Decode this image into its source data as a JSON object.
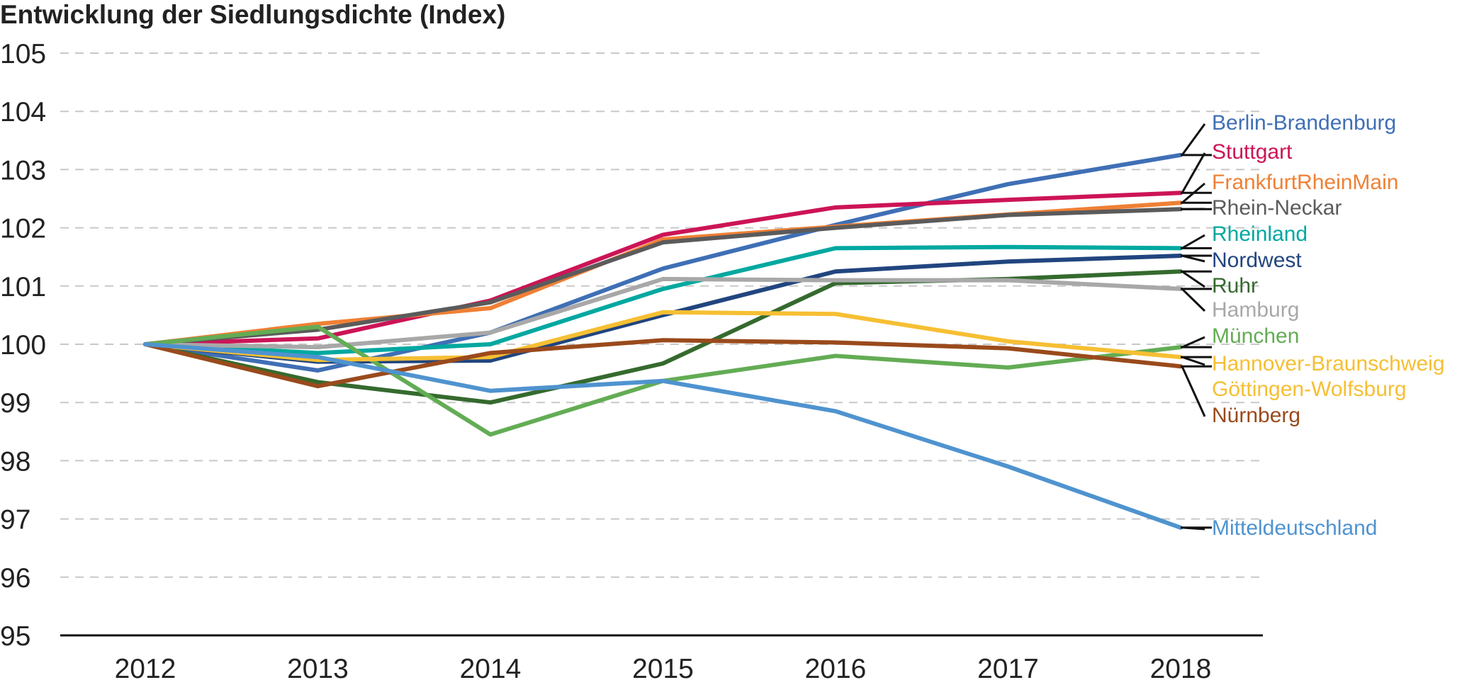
{
  "chart_data": {
    "type": "line",
    "title": "Entwicklung der Siedlungsdichte (Index)",
    "xlabel": "",
    "ylabel": "",
    "x": [
      "2012",
      "2013",
      "2014",
      "2015",
      "2016",
      "2017",
      "2018"
    ],
    "ylim": [
      95,
      105
    ],
    "yticks": [
      95,
      96,
      97,
      98,
      99,
      100,
      101,
      102,
      103,
      104,
      105
    ],
    "grid": "horizontal-dashed",
    "legend": "right (labels at line ends)",
    "series": [
      {
        "name": "Berlin-Brandenburg",
        "color": "#3f6fb5",
        "values": [
          100,
          99.55,
          100.2,
          101.3,
          102.05,
          102.75,
          103.25
        ]
      },
      {
        "name": "Stuttgart",
        "color": "#cc1456",
        "values": [
          100,
          100.1,
          100.75,
          101.88,
          102.35,
          102.48,
          102.6
        ]
      },
      {
        "name": "FrankfurtRheinMain",
        "color": "#ef8035",
        "values": [
          100,
          100.35,
          100.62,
          101.8,
          102.02,
          102.23,
          102.43
        ]
      },
      {
        "name": "Rhein-Neckar",
        "color": "#5b5b5b",
        "values": [
          100,
          100.25,
          100.72,
          101.75,
          102.0,
          102.22,
          102.32
        ]
      },
      {
        "name": "Rheinland",
        "color": "#00a8a0",
        "values": [
          100,
          99.85,
          100.0,
          100.95,
          101.65,
          101.67,
          101.65
        ]
      },
      {
        "name": "Nordwest",
        "color": "#21457f",
        "values": [
          100,
          99.7,
          99.72,
          100.5,
          101.25,
          101.42,
          101.52
        ]
      },
      {
        "name": "Ruhr",
        "color": "#356a2e",
        "values": [
          100,
          99.35,
          99.0,
          99.67,
          101.05,
          101.12,
          101.25
        ]
      },
      {
        "name": "Hamburg",
        "color": "#a8a8a8",
        "values": [
          100,
          99.95,
          100.2,
          101.12,
          101.1,
          101.1,
          100.95
        ]
      },
      {
        "name": "München",
        "color": "#63ac54",
        "values": [
          100,
          100.3,
          98.45,
          99.37,
          99.8,
          99.6,
          99.95
        ]
      },
      {
        "name": "Hannover-Braunschweig Göttingen-Wolfsburg",
        "label_lines": [
          "Hannover-Braunschweig",
          "Göttingen-Wolfsburg"
        ],
        "color": "#f6bf33",
        "values": [
          100,
          99.73,
          99.78,
          100.55,
          100.52,
          100.05,
          99.78
        ]
      },
      {
        "name": "Nürnberg",
        "color": "#9a4a1c",
        "values": [
          100,
          99.28,
          99.85,
          100.07,
          100.03,
          99.93,
          99.62
        ]
      },
      {
        "name": "Mitteldeutschland",
        "color": "#4f93cf",
        "values": [
          100,
          99.78,
          99.2,
          99.37,
          98.85,
          97.9,
          96.85
        ]
      }
    ]
  }
}
